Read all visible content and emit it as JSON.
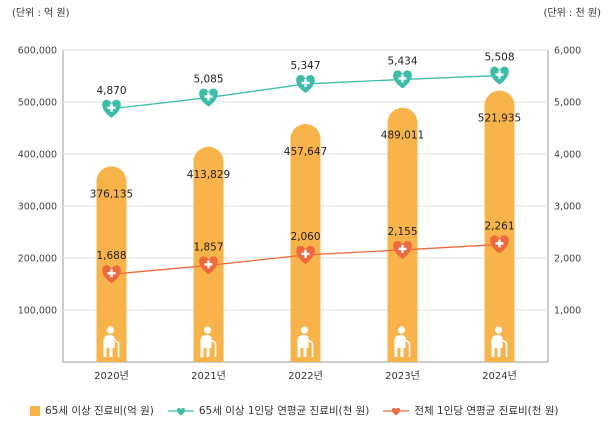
{
  "chart_data": {
    "type": "bar",
    "categories": [
      "2020년",
      "2021년",
      "2022년",
      "2023년",
      "2024년"
    ],
    "unit_left": "(단위 : 억 원)",
    "unit_right": "(단위 : 천 원)",
    "y_left": {
      "ticks": [
        "600,000",
        "500,000",
        "400,000",
        "300,000",
        "200,000",
        "100,000"
      ],
      "ylim": [
        0,
        600000
      ]
    },
    "y_right": {
      "ticks": [
        "6,000",
        "5,000",
        "4,000",
        "3,000",
        "2,000",
        "1,000"
      ],
      "ylim": [
        0,
        6000
      ]
    },
    "series": [
      {
        "name": "65세 이상 진료비(억 원)",
        "kind": "bar",
        "axis": "left",
        "color": "#f9b34b",
        "values": [
          376135,
          413829,
          457647,
          489011,
          521935
        ],
        "labels": [
          "376,135",
          "413,829",
          "457,647",
          "489,011",
          "521,935"
        ]
      },
      {
        "name": "65세 이상 1인당 연평균 진료비(천 원)",
        "kind": "line",
        "axis": "right",
        "color": "#3dbda8",
        "values": [
          4870,
          5085,
          5347,
          5434,
          5508
        ],
        "labels": [
          "4,870",
          "5,085",
          "5,347",
          "5,434",
          "5,508"
        ]
      },
      {
        "name": "전체 1인당 연평균 진료비(천 원)",
        "kind": "line",
        "axis": "right",
        "color": "#ee6a3c",
        "values": [
          1688,
          1857,
          2060,
          2155,
          2261
        ],
        "labels": [
          "1,688",
          "1,857",
          "2,060",
          "2,155",
          "2,261"
        ]
      }
    ],
    "grid": true,
    "legend_position": "bottom",
    "bar_icon": "elderly-person-icon",
    "marker_icons": [
      "heart-plus-icon"
    ]
  }
}
